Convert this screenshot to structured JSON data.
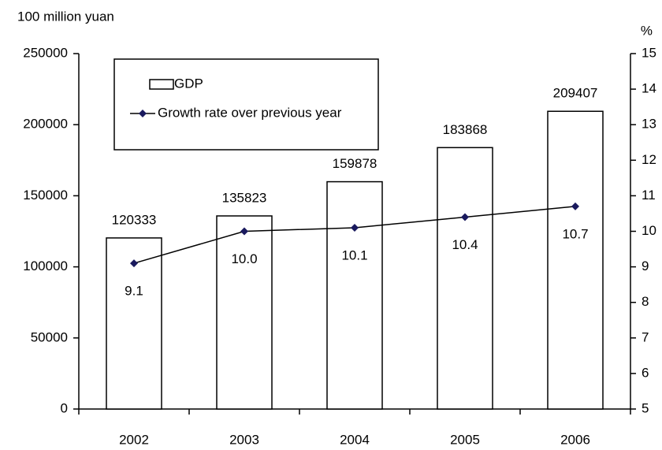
{
  "chart_data": {
    "type": "bar",
    "ylabel": "100 million yuan",
    "y2label": "%",
    "categories": [
      "2002",
      "2003",
      "2004",
      "2005",
      "2006"
    ],
    "series": [
      {
        "name": "GDP",
        "type": "bar",
        "color": "#ffffff",
        "values": [
          120333,
          135823,
          159878,
          183868,
          209407
        ]
      },
      {
        "name": "Growth rate over previous year",
        "type": "line",
        "axis": "y2",
        "color": "#1a1a5e",
        "values": [
          9.1,
          10,
          10.1,
          10.4,
          10.7
        ],
        "value_labels": [
          "9.1",
          "10.0",
          "10.1",
          "10.4",
          "10.7"
        ]
      }
    ],
    "ylim": [
      0,
      250000
    ],
    "yticks": [
      0,
      50000,
      100000,
      150000,
      200000,
      250000
    ],
    "y2lim": [
      5,
      15
    ],
    "y2ticks": [
      5,
      6,
      7,
      8,
      9,
      10,
      11,
      12,
      13,
      14,
      15
    ],
    "legend": "upper left",
    "grid": false
  }
}
